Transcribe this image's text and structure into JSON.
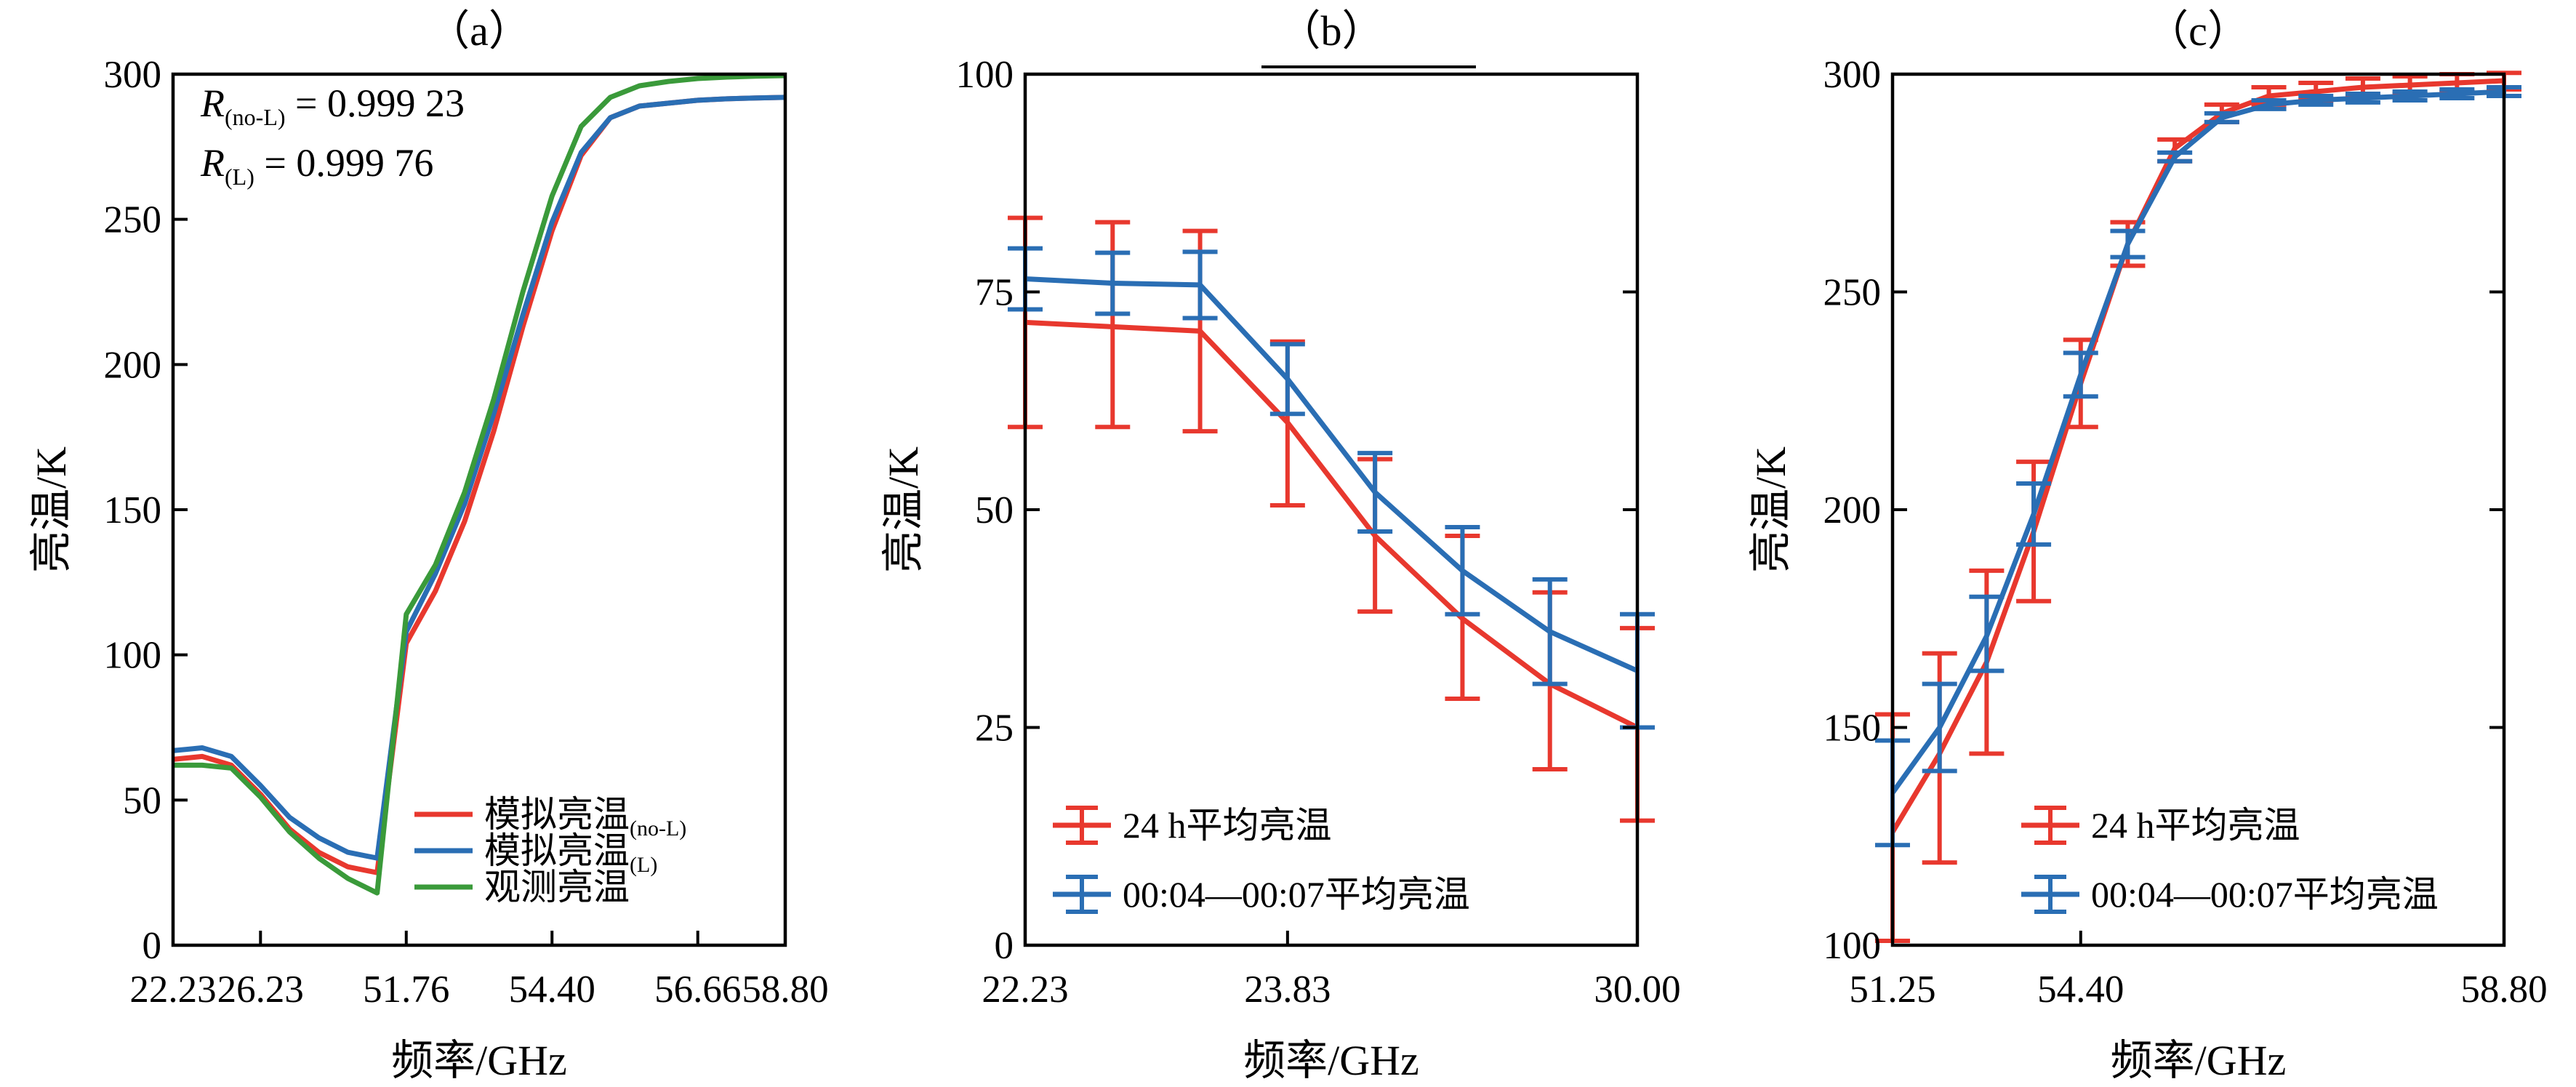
{
  "chart_data": [
    {
      "type": "line",
      "title": "（a）",
      "xlabel": "频率/GHz",
      "ylabel": "亮温/K",
      "ylim": [
        0,
        300
      ],
      "yticks": [
        0,
        50,
        100,
        150,
        200,
        250,
        300
      ],
      "xtick_labels": [
        "22.23",
        "26.23",
        "51.76",
        "54.40",
        "56.66",
        "58.80"
      ],
      "annotations": [
        {
          "main": "R",
          "sub": "(no-L)",
          "rest": " = 0.999 23"
        },
        {
          "main": "R",
          "sub": "(L)",
          "rest": " = 0.999 76"
        }
      ],
      "x_index": [
        0,
        1,
        2,
        3,
        4,
        5,
        6,
        7,
        8,
        9,
        10,
        11,
        12,
        13,
        14,
        15,
        16,
        17,
        18,
        19,
        20,
        21
      ],
      "series": [
        {
          "name": "模拟亮温",
          "name_sub": "(no-L)",
          "color": "#e8382e",
          "values": [
            64,
            65,
            62,
            52,
            40,
            32,
            27,
            25,
            104,
            122,
            146,
            177,
            213,
            246,
            272,
            285,
            289,
            290,
            291,
            291.5,
            291.8,
            292
          ]
        },
        {
          "name": "模拟亮温",
          "name_sub": "(L)",
          "color": "#2a6eb4",
          "values": [
            67,
            68,
            65,
            55,
            44,
            37,
            32,
            30,
            108,
            128,
            152,
            183,
            217,
            249,
            273,
            285,
            289,
            290,
            291,
            291.5,
            291.8,
            292
          ]
        },
        {
          "name": "观测亮温",
          "name_sub": "",
          "color": "#3a9a3a",
          "values": [
            62,
            62,
            61,
            51,
            39,
            30,
            23,
            18,
            114,
            131,
            156,
            188,
            225,
            258,
            282,
            292,
            296,
            297.5,
            298.5,
            299,
            299.3,
            299.5
          ]
        }
      ],
      "legend": "bottom-right",
      "grid": false
    },
    {
      "type": "line",
      "title": "（b）",
      "xlabel": "频率/GHz",
      "ylabel": "亮温/K",
      "ylim": [
        0,
        100
      ],
      "yticks": [
        0,
        25,
        50,
        75,
        100
      ],
      "xtick_labels": [
        "22.23",
        "23.83",
        "30.00"
      ],
      "x_index": [
        0,
        1,
        2,
        3,
        4,
        5,
        6,
        7
      ],
      "series": [
        {
          "name": "24 h平均亮温",
          "color": "#e8382e",
          "values": [
            71.5,
            71,
            70.5,
            60,
            47,
            37.5,
            30,
            25
          ],
          "err_low": [
            59.5,
            59.5,
            59,
            50.5,
            38.3,
            28.3,
            20.2,
            14.3
          ],
          "err_high": [
            83.5,
            83,
            82,
            69.3,
            55.8,
            47,
            40.5,
            36.4
          ]
        },
        {
          "name": "00:04—00:07平均亮温",
          "color": "#2a6eb4",
          "values": [
            76.5,
            76,
            75.8,
            65,
            52,
            43,
            36,
            31.5
          ],
          "err_low": [
            73,
            72.5,
            72,
            61,
            47.5,
            38,
            30,
            25
          ],
          "err_high": [
            80,
            79.5,
            79.6,
            69,
            56.5,
            48,
            42,
            38
          ]
        }
      ],
      "legend": "bottom-left",
      "grid": false
    },
    {
      "type": "line",
      "title": "（c）",
      "xlabel": "频率/GHz",
      "ylabel": "亮温/K",
      "ylim": [
        100,
        300
      ],
      "yticks": [
        100,
        150,
        200,
        250,
        300
      ],
      "xtick_labels": [
        "51.25",
        "54.40",
        "58.80"
      ],
      "x_index": [
        0,
        1,
        2,
        3,
        4,
        5,
        6,
        7,
        8,
        9,
        10,
        11,
        12,
        13
      ],
      "series": [
        {
          "name": "24 h平均亮温",
          "color": "#e8382e",
          "values": [
            126,
            144,
            165,
            195,
            229,
            261,
            283,
            291,
            295,
            296,
            297,
            297.5,
            298,
            298.5
          ],
          "err_low": [
            101,
            119,
            144,
            179,
            219,
            256,
            280,
            289,
            293,
            294,
            295,
            295.5,
            296,
            296.5
          ],
          "err_high": [
            153,
            167,
            186,
            211,
            239,
            266,
            285,
            293,
            297,
            298,
            299,
            299.5,
            300,
            300.3
          ]
        },
        {
          "name": "00:04—00:07平均亮温",
          "color": "#2a6eb4",
          "values": [
            135,
            150,
            171,
            199,
            231,
            261,
            281,
            290,
            293,
            294,
            294.5,
            295,
            295.5,
            296
          ],
          "err_low": [
            123,
            140,
            163,
            192,
            226,
            258,
            280,
            289,
            292,
            293,
            293.5,
            294,
            294.5,
            295
          ],
          "err_high": [
            147,
            160,
            180,
            206,
            236,
            264,
            282,
            291,
            294,
            295,
            295.5,
            296,
            296.5,
            297
          ]
        }
      ],
      "legend": "bottom-right",
      "grid": false
    }
  ]
}
